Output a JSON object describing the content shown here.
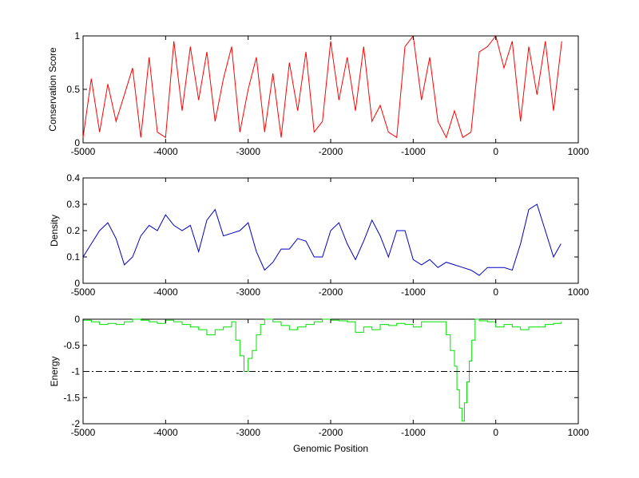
{
  "chart_data": [
    {
      "type": "line",
      "ylabel": "Conservation Score",
      "xlabel": "",
      "xlim": [
        -5000,
        1000
      ],
      "ylim": [
        0,
        1
      ],
      "xticks": [
        -5000,
        -4000,
        -3000,
        -2000,
        -1000,
        0,
        1000
      ],
      "yticks": [
        0,
        0.5,
        1
      ],
      "ytick_labels": [
        "0",
        "0.5",
        "1"
      ],
      "series": [
        {
          "color": "#ff0000",
          "style": "solid",
          "x": [
            -5000,
            -4900,
            -4800,
            -4700,
            -4600,
            -4500,
            -4400,
            -4300,
            -4200,
            -4100,
            -4000,
            -3900,
            -3800,
            -3700,
            -3600,
            -3500,
            -3400,
            -3300,
            -3200,
            -3100,
            -3000,
            -2900,
            -2800,
            -2700,
            -2600,
            -2500,
            -2400,
            -2300,
            -2200,
            -2100,
            -2000,
            -1900,
            -1800,
            -1700,
            -1600,
            -1500,
            -1400,
            -1300,
            -1200,
            -1100,
            -1000,
            -900,
            -800,
            -700,
            -600,
            -500,
            -400,
            -300,
            -200,
            -100,
            0,
            100,
            200,
            300,
            400,
            500,
            600,
            700,
            800
          ],
          "y": [
            0.05,
            0.6,
            0.1,
            0.55,
            0.2,
            0.45,
            0.7,
            0.05,
            0.8,
            0.1,
            0.05,
            0.95,
            0.3,
            0.9,
            0.4,
            0.85,
            0.2,
            0.6,
            0.9,
            0.1,
            0.5,
            0.8,
            0.1,
            0.65,
            0.05,
            0.75,
            0.3,
            0.85,
            0.1,
            0.2,
            0.95,
            0.4,
            0.8,
            0.3,
            0.9,
            0.2,
            0.35,
            0.1,
            0.05,
            0.9,
            1.0,
            0.4,
            0.8,
            0.2,
            0.05,
            0.3,
            0.05,
            0.1,
            0.85,
            0.9,
            1.0,
            0.7,
            0.95,
            0.2,
            0.9,
            0.45,
            0.95,
            0.3,
            0.95
          ]
        }
      ]
    },
    {
      "type": "line",
      "ylabel": "Density",
      "xlabel": "",
      "xlim": [
        -5000,
        1000
      ],
      "ylim": [
        0,
        0.4
      ],
      "xticks": [
        -5000,
        -4000,
        -3000,
        -2000,
        -1000,
        0,
        1000
      ],
      "yticks": [
        0,
        0.1,
        0.2,
        0.3,
        0.4
      ],
      "ytick_labels": [
        "0",
        "0.1",
        "0.2",
        "0.3",
        "0.4"
      ],
      "series": [
        {
          "color": "#0000c0",
          "style": "solid",
          "x": [
            -5000,
            -4900,
            -4800,
            -4700,
            -4600,
            -4500,
            -4400,
            -4300,
            -4200,
            -4100,
            -4000,
            -3900,
            -3800,
            -3700,
            -3600,
            -3500,
            -3400,
            -3300,
            -3200,
            -3100,
            -3000,
            -2900,
            -2800,
            -2700,
            -2600,
            -2500,
            -2400,
            -2300,
            -2200,
            -2100,
            -2000,
            -1900,
            -1800,
            -1700,
            -1600,
            -1500,
            -1400,
            -1300,
            -1200,
            -1100,
            -1000,
            -900,
            -800,
            -700,
            -600,
            -500,
            -400,
            -300,
            -200,
            -100,
            0,
            100,
            200,
            300,
            400,
            500,
            600,
            700,
            790
          ],
          "y": [
            0.1,
            0.15,
            0.2,
            0.23,
            0.17,
            0.07,
            0.1,
            0.18,
            0.22,
            0.2,
            0.26,
            0.22,
            0.2,
            0.22,
            0.12,
            0.24,
            0.28,
            0.18,
            0.19,
            0.2,
            0.23,
            0.12,
            0.05,
            0.08,
            0.13,
            0.13,
            0.17,
            0.16,
            0.1,
            0.1,
            0.2,
            0.23,
            0.15,
            0.09,
            0.16,
            0.24,
            0.18,
            0.1,
            0.2,
            0.2,
            0.09,
            0.07,
            0.09,
            0.06,
            0.08,
            0.07,
            0.06,
            0.05,
            0.03,
            0.06,
            0.06,
            0.06,
            0.05,
            0.15,
            0.28,
            0.3,
            0.2,
            0.1,
            0.15
          ]
        }
      ]
    },
    {
      "type": "line",
      "ylabel": "Energy",
      "xlabel": "Genomic Position",
      "xlim": [
        -5000,
        1000
      ],
      "ylim": [
        -2,
        0
      ],
      "xticks": [
        -5000,
        -4000,
        -3000,
        -2000,
        -1000,
        0,
        1000
      ],
      "yticks": [
        -2,
        -1.5,
        -1,
        -0.5,
        0
      ],
      "ytick_labels": [
        "-2",
        "-1.5",
        "-1",
        "-0.5",
        "0"
      ],
      "series": [
        {
          "color": "#00e000",
          "style": "step",
          "x": [
            -5000,
            -4900,
            -4800,
            -4700,
            -4600,
            -4500,
            -4400,
            -4300,
            -4200,
            -4100,
            -4000,
            -3900,
            -3800,
            -3700,
            -3600,
            -3500,
            -3400,
            -3300,
            -3200,
            -3150,
            -3100,
            -3050,
            -3000,
            -2950,
            -2900,
            -2850,
            -2800,
            -2700,
            -2600,
            -2500,
            -2400,
            -2300,
            -2200,
            -2100,
            -2000,
            -1900,
            -1800,
            -1700,
            -1600,
            -1500,
            -1400,
            -1300,
            -1200,
            -1100,
            -1000,
            -900,
            -800,
            -700,
            -600,
            -550,
            -500,
            -470,
            -440,
            -410,
            -380,
            -350,
            -320,
            -290,
            -250,
            -200,
            -100,
            0,
            100,
            200,
            300,
            400,
            500,
            600,
            700,
            790
          ],
          "y": [
            -0.02,
            -0.05,
            -0.1,
            -0.08,
            -0.1,
            -0.05,
            0,
            -0.02,
            -0.05,
            -0.08,
            -0.02,
            -0.05,
            -0.1,
            -0.15,
            -0.2,
            -0.3,
            -0.2,
            -0.15,
            -0.05,
            -0.4,
            -0.7,
            -1.0,
            -0.75,
            -0.6,
            -0.3,
            -0.1,
            0,
            -0.05,
            -0.12,
            -0.2,
            -0.15,
            -0.1,
            -0.05,
            0,
            -0.02,
            -0.03,
            -0.05,
            -0.25,
            -0.15,
            -0.2,
            -0.1,
            -0.12,
            -0.08,
            -0.1,
            -0.15,
            -0.05,
            -0.05,
            -0.05,
            -0.3,
            -0.6,
            -0.9,
            -1.35,
            -1.7,
            -1.95,
            -1.6,
            -1.2,
            -0.8,
            -0.4,
            0,
            -0.03,
            -0.05,
            -0.15,
            -0.1,
            -0.15,
            -0.2,
            -0.15,
            -0.15,
            -0.1,
            -0.08,
            -0.05
          ]
        },
        {
          "color": "#000000",
          "style": "dashdot",
          "x": [
            -5000,
            1000
          ],
          "y": [
            -1,
            -1
          ]
        }
      ]
    }
  ]
}
